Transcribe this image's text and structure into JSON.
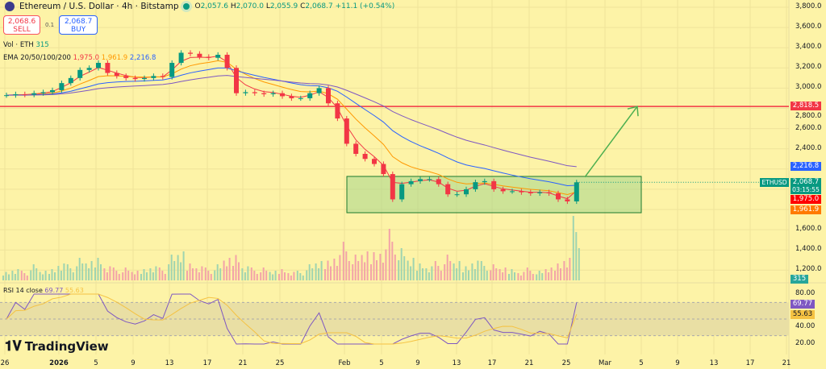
{
  "header": {
    "symbol": "Ethereum / U.S. Dollar · 4h · Bitstamp",
    "open_label": "O",
    "open": "2,057.6",
    "high_label": "H",
    "high": "2,070.0",
    "low_label": "L",
    "low": "2,055.9",
    "close_label": "C",
    "close": "2,068.7",
    "change": "+11.1 (+0.54%)"
  },
  "trade": {
    "sell_price": "2,068.6",
    "sell_label": "SELL",
    "qty": "0.1",
    "buy_price": "2,068.7",
    "buy_label": "BUY"
  },
  "indicators": {
    "vol_label": "Vol · ETH",
    "vol_value": "315",
    "ema_label": "EMA 20/50/100/200",
    "ema20": "1,975.0",
    "ema50": "1,961.9",
    "ema100": "2,216.8",
    "rsi_label": "RSI 14 close",
    "rsi_value": "69.77",
    "rsi_ma": "55.63"
  },
  "price_tags": {
    "ema100": "2,216.8",
    "last": "2,068.7",
    "countdown": "03:15:55",
    "symbol": "ETHUSD",
    "ema20": "1,975.0",
    "ema50": "1,961.9",
    "hline": "2,818.5",
    "volume": "315",
    "rsi": "69.77",
    "rsi_ma": "55.63"
  },
  "colors": {
    "bg": "#fdf3a7",
    "up": "#089981",
    "down": "#f23645",
    "hline": "#f23645",
    "box": "#a5d68a",
    "arrow": "#4caf50",
    "ema20": "#f23645",
    "ema50": "#ff9800",
    "ema100": "#2962ff",
    "ema200": "#7e57c2",
    "rsi": "#7e57c2"
  },
  "brand": "TradingView",
  "chart_data": {
    "type": "candlestick",
    "price_axis": {
      "min": 1200,
      "max": 3800,
      "ticks": [
        "3,800.0",
        "3,600.0",
        "3,400.0",
        "3,200.0",
        "3,000.0",
        "2,800.0",
        "2,600.0",
        "2,400.0",
        "1,600.0",
        "1,400.0",
        "1,200.0"
      ]
    },
    "rsi_axis": {
      "ticks": [
        "80.00",
        "40.00",
        "20.00"
      ],
      "bands": [
        30,
        70
      ]
    },
    "x_ticks": [
      "26",
      "2026",
      "5",
      "9",
      "13",
      "17",
      "21",
      "25",
      "Feb",
      "5",
      "9",
      "13",
      "17",
      "21",
      "25",
      "Mar",
      "5",
      "9",
      "13",
      "17",
      "21"
    ],
    "dates_start": "Dec 26",
    "dates_end": "Feb 26",
    "closes": [
      2930,
      2940,
      2935,
      2950,
      2960,
      2980,
      3050,
      3100,
      3180,
      3200,
      3250,
      3150,
      3120,
      3100,
      3090,
      3100,
      3120,
      3110,
      3250,
      3350,
      3340,
      3310,
      3300,
      3330,
      3200,
      2950,
      2960,
      2950,
      2940,
      2950,
      2920,
      2900,
      2900,
      2950,
      3000,
      2850,
      2700,
      2450,
      2350,
      2300,
      2250,
      2150,
      1900,
      2050,
      2080,
      2100,
      2100,
      2050,
      1950,
      1950,
      2000,
      2070,
      2080,
      2000,
      1980,
      1980,
      1970,
      1960,
      1970,
      1960,
      1900,
      1880,
      2068.7
    ],
    "volume": [
      3,
      4,
      3,
      5,
      3,
      4,
      6,
      5,
      7,
      6,
      8,
      5,
      4,
      4,
      3,
      4,
      5,
      4,
      8,
      9,
      6,
      5,
      4,
      5,
      7,
      9,
      5,
      4,
      4,
      3,
      4,
      3,
      3,
      5,
      6,
      7,
      9,
      12,
      8,
      9,
      10,
      11,
      16,
      10,
      7,
      6,
      5,
      6,
      8,
      6,
      5,
      7,
      6,
      5,
      4,
      4,
      3,
      4,
      3,
      4,
      6,
      8,
      20
    ],
    "hline": 2818.5,
    "box": {
      "from": "Feb 2",
      "to": "Mar 5",
      "top": 2127,
      "bottom": 1768
    },
    "arrow": {
      "from_price": 2120,
      "to_price": 2818.5
    }
  }
}
